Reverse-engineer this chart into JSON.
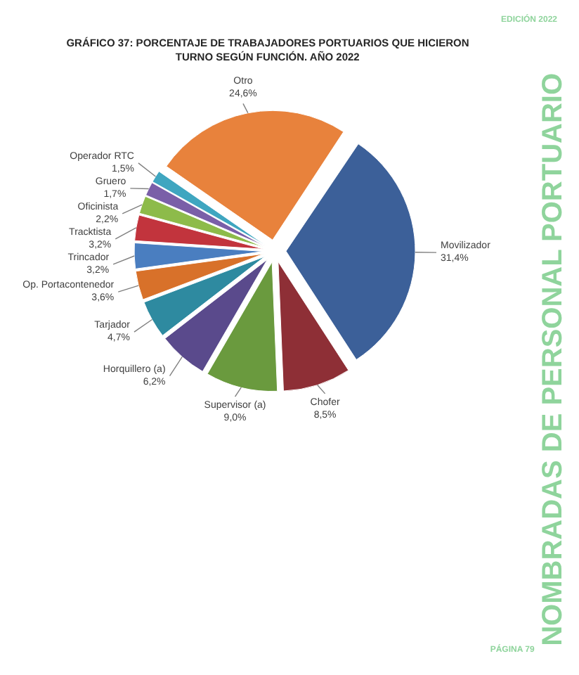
{
  "chart_data": {
    "type": "pie",
    "title": "GRÁFICO 37: PORCENTAJE DE TRABAJADORES PORTUARIOS QUE HICIERON TURNO SEGÚN FUNCIÓN. AÑO 2022",
    "categories": [
      "Movilizador",
      "Chofer",
      "Supervisor (a)",
      "Horquillero (a)",
      "Tarjador",
      "Op. Portacontenedor",
      "Trincador",
      "Tracktista",
      "Oficinista",
      "Gruero",
      "Operador RTC",
      "Otro"
    ],
    "values": [
      31.4,
      8.5,
      9.0,
      6.2,
      4.7,
      3.6,
      3.2,
      3.2,
      2.2,
      1.7,
      1.5,
      24.6
    ],
    "value_labels": [
      "31,4%",
      "8,5%",
      "9,0%",
      "6,2%",
      "4,7%",
      "3,6%",
      "3,2%",
      "3,2%",
      "2,2%",
      "1,7%",
      "1,5%",
      "24,6%"
    ],
    "colors": [
      "#3c6099",
      "#8e2f36",
      "#6a9a3e",
      "#5a4a8c",
      "#2e8aa0",
      "#d8712a",
      "#4a7ec0",
      "#c2343d",
      "#8dbb4a",
      "#7a5fa8",
      "#3fa6c0",
      "#e8823c"
    ],
    "annotations": [
      "EDICIÓN 2022",
      "PÁGINA 79",
      "NOMBRADAS DE PERSONAL PORTUARIO"
    ]
  }
}
